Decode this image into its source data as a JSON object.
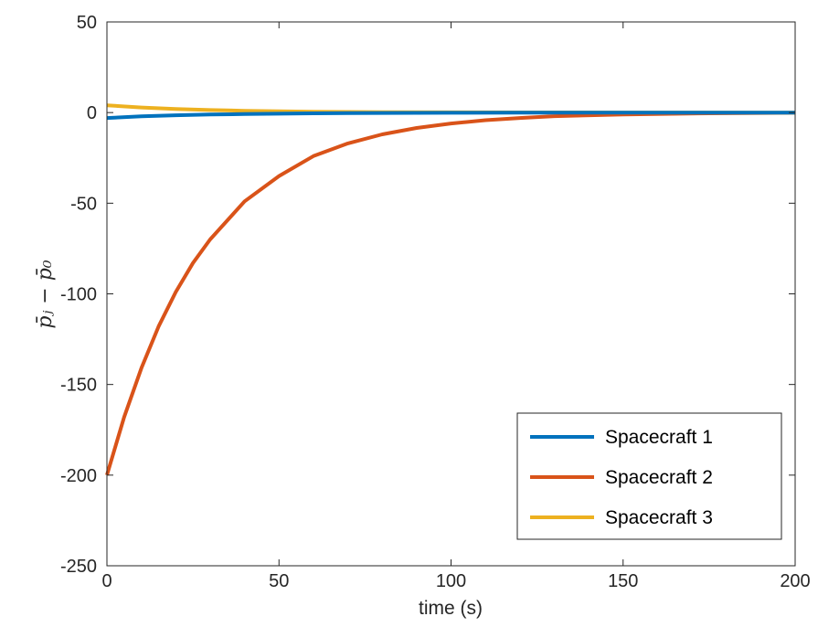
{
  "chart_data": {
    "type": "line",
    "xlabel": "time (s)",
    "ylabel": "p̄ⱼ − p̄₀",
    "xlim": [
      0,
      200
    ],
    "ylim": [
      -250,
      50
    ],
    "xticks": [
      "0",
      "50",
      "100",
      "150",
      "200"
    ],
    "yticks": [
      "50",
      "0",
      "-50",
      "-100",
      "-150",
      "-200",
      "-250"
    ],
    "grid": false,
    "legend_position": "bottom-right",
    "series": [
      {
        "name": "Spacecraft 1",
        "color": "#0072BD",
        "x": [
          0,
          10,
          20,
          30,
          40,
          50,
          60,
          70,
          80,
          100,
          120,
          150,
          200
        ],
        "y": [
          -3,
          -2.1,
          -1.5,
          -1.1,
          -0.8,
          -0.6,
          -0.4,
          -0.3,
          -0.2,
          -0.1,
          -0.05,
          0,
          0
        ]
      },
      {
        "name": "Spacecraft 2",
        "color": "#D95319",
        "x": [
          0,
          5,
          10,
          15,
          20,
          25,
          30,
          40,
          50,
          60,
          70,
          80,
          90,
          100,
          110,
          120,
          130,
          150,
          175,
          200
        ],
        "y": [
          -200,
          -168,
          -141,
          -118,
          -99,
          -83,
          -70,
          -49,
          -35,
          -24,
          -17,
          -12,
          -8.5,
          -6,
          -4.2,
          -3,
          -2,
          -1,
          -0.4,
          -0.1
        ]
      },
      {
        "name": "Spacecraft 3",
        "color": "#EDB120",
        "x": [
          0,
          10,
          20,
          30,
          40,
          50,
          60,
          70,
          80,
          100,
          120,
          150,
          200
        ],
        "y": [
          4,
          2.8,
          2,
          1.4,
          1,
          0.7,
          0.5,
          0.35,
          0.25,
          0.12,
          0.06,
          0.02,
          0
        ]
      }
    ]
  }
}
